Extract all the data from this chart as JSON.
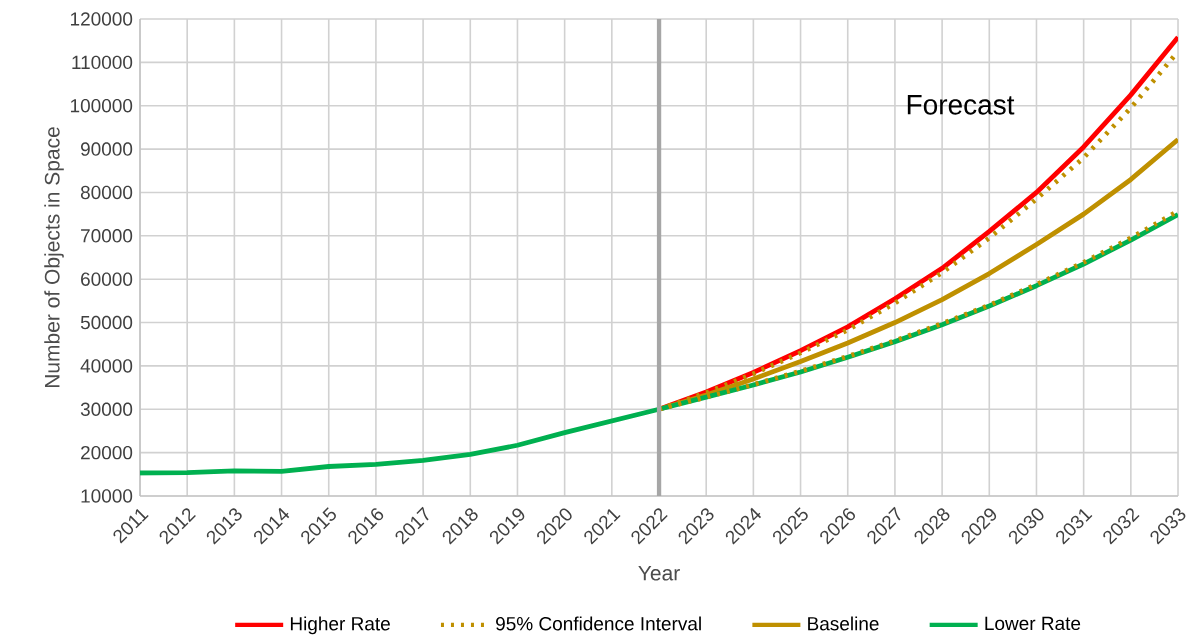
{
  "chart_data": {
    "type": "line",
    "xlabel": "Year",
    "ylabel": "Number of Objects in Space",
    "annotations": [
      "Forecast"
    ],
    "series": [
      {
        "name": "Higher Rate",
        "color": "#ff0000",
        "line_style": "solid",
        "x": [
          2022,
          2023,
          2024,
          2025,
          2026,
          2027,
          2028,
          2029,
          2030,
          2031,
          2032,
          2033
        ],
        "values": [
          30000,
          34000,
          38500,
          43500,
          49000,
          55500,
          62500,
          71000,
          80000,
          90500,
          102500,
          115800
        ]
      },
      {
        "name": "95% Confidence Interval",
        "color": "#bf9000",
        "line_style": "dotted",
        "x": [
          2022,
          2023,
          2024,
          2025,
          2026,
          2027,
          2028,
          2029,
          2030,
          2031,
          2032,
          2033
        ],
        "values": [
          30000,
          33800,
          38200,
          43000,
          48300,
          54500,
          61500,
          69500,
          78500,
          88000,
          99500,
          112500
        ]
      },
      {
        "color": "#bf9000",
        "line_style": "dotted",
        "x": [
          2022,
          2023,
          2024,
          2025,
          2026,
          2027,
          2028,
          2029,
          2030,
          2031,
          2032,
          2033
        ],
        "values": [
          30000,
          32800,
          35700,
          38800,
          42200,
          45800,
          49800,
          54000,
          58800,
          63900,
          69500,
          75700
        ]
      },
      {
        "name": "Baseline",
        "color": "#bf9000",
        "line_style": "solid",
        "x": [
          2022,
          2023,
          2024,
          2025,
          2026,
          2027,
          2028,
          2029,
          2030,
          2031,
          2032,
          2033
        ],
        "values": [
          30000,
          33300,
          37000,
          41000,
          45300,
          50000,
          55300,
          61300,
          68000,
          75000,
          83000,
          92200
        ]
      },
      {
        "name": "Lower Rate",
        "color": "#00b050",
        "line_style": "solid",
        "x": [
          2011,
          2012,
          2013,
          2014,
          2015,
          2016,
          2017,
          2018,
          2019,
          2020,
          2021,
          2022,
          2023,
          2024,
          2025,
          2026,
          2027,
          2028,
          2029,
          2030,
          2031,
          2032,
          2033
        ],
        "values": [
          15300,
          15400,
          15800,
          15700,
          16800,
          17300,
          18200,
          19600,
          21700,
          24600,
          27300,
          30000,
          32800,
          35600,
          38600,
          42000,
          45600,
          49500,
          53800,
          58500,
          63500,
          69000,
          74900
        ]
      }
    ],
    "xlim": [
      2011,
      2033
    ],
    "ylim": [
      10000,
      120000
    ],
    "xticks": [
      2011,
      2012,
      2013,
      2014,
      2015,
      2016,
      2017,
      2018,
      2019,
      2020,
      2021,
      2022,
      2023,
      2024,
      2025,
      2026,
      2027,
      2028,
      2029,
      2030,
      2031,
      2032,
      2033
    ],
    "yticks": [
      10000,
      20000,
      30000,
      40000,
      50000,
      60000,
      70000,
      80000,
      90000,
      100000,
      110000,
      120000
    ],
    "ref_lines": [
      {
        "axis": "x",
        "value": 2022,
        "color": "#a6a6a6"
      }
    ],
    "grid": true,
    "legend": "bottom",
    "marker": "none"
  }
}
